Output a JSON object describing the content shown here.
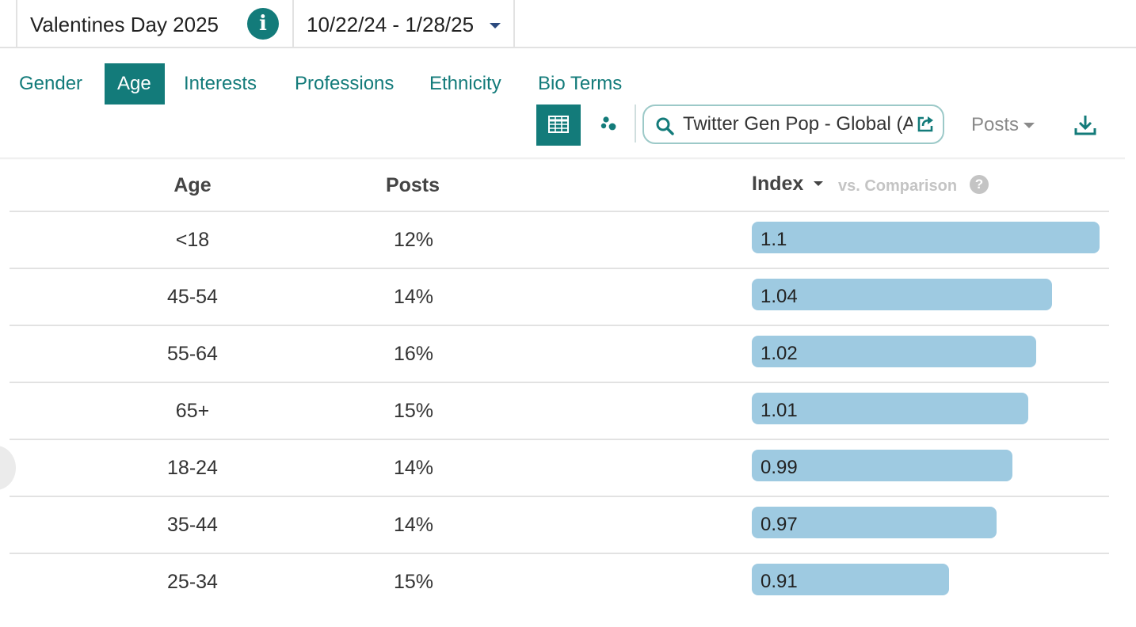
{
  "header": {
    "project_title": "Valentines Day 2025",
    "date_range": "10/22/24 - 1/28/25"
  },
  "tabs": [
    {
      "label": "Gender",
      "active": false
    },
    {
      "label": "Age",
      "active": true
    },
    {
      "label": "Interests",
      "active": false
    },
    {
      "label": "Professions",
      "active": false
    },
    {
      "label": "Ethnicity",
      "active": false
    },
    {
      "label": "Bio Terms",
      "active": false
    }
  ],
  "toolbar": {
    "view_modes": [
      {
        "icon": "table-grid-icon",
        "active": true
      },
      {
        "icon": "scatter-dots-icon",
        "active": false
      }
    ],
    "comparison_search_value": "Twitter Gen Pop - Global (All)",
    "metric_selected": "Posts"
  },
  "table": {
    "columns": {
      "age": "Age",
      "posts": "Posts",
      "index": "Index",
      "comparison_note": "vs. Comparison"
    },
    "index_max": 1.1,
    "rows": [
      {
        "age": "<18",
        "posts": "12%",
        "index": 1.1,
        "index_label": "1.1"
      },
      {
        "age": "45-54",
        "posts": "14%",
        "index": 1.04,
        "index_label": "1.04"
      },
      {
        "age": "55-64",
        "posts": "16%",
        "index": 1.02,
        "index_label": "1.02"
      },
      {
        "age": "65+",
        "posts": "15%",
        "index": 1.01,
        "index_label": "1.01"
      },
      {
        "age": "18-24",
        "posts": "14%",
        "index": 0.99,
        "index_label": "0.99"
      },
      {
        "age": "35-44",
        "posts": "14%",
        "index": 0.97,
        "index_label": "0.97"
      },
      {
        "age": "25-34",
        "posts": "15%",
        "index": 0.91,
        "index_label": "0.91"
      }
    ]
  },
  "colors": {
    "accent": "#137b7a",
    "bar": "#9ecae1",
    "muted": "#c4c4c4"
  }
}
